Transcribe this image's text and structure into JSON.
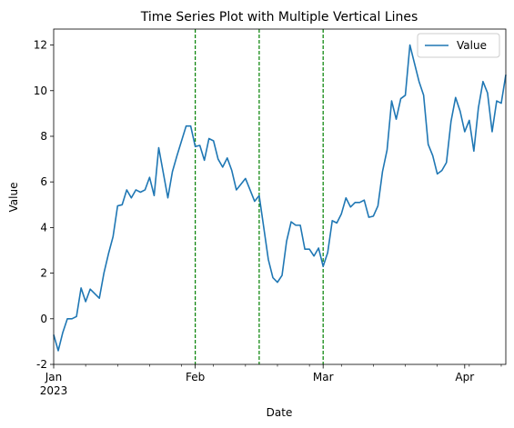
{
  "chart_data": {
    "type": "line",
    "title": "Time Series Plot with Multiple Vertical Lines",
    "xlabel": "Date",
    "ylabel": "Value",
    "x_range": [
      "2023-01-01",
      "2023-04-10"
    ],
    "ylim": [
      -2,
      12.7
    ],
    "y_ticks": [
      -2,
      0,
      2,
      4,
      6,
      8,
      10,
      12
    ],
    "x_ticks": [
      {
        "date": "2023-01-01",
        "label": "Jan",
        "sublabel": "2023"
      },
      {
        "date": "2023-02-01",
        "label": "Feb",
        "sublabel": ""
      },
      {
        "date": "2023-03-01",
        "label": "Mar",
        "sublabel": ""
      },
      {
        "date": "2023-04-01",
        "label": "Apr",
        "sublabel": ""
      }
    ],
    "minor_x_ticks": [
      "2023-01-08",
      "2023-01-15",
      "2023-01-22",
      "2023-01-29",
      "2023-02-05",
      "2023-02-12",
      "2023-02-19",
      "2023-02-26",
      "2023-03-05",
      "2023-03-12",
      "2023-03-19",
      "2023-03-26",
      "2023-04-02",
      "2023-04-09"
    ],
    "vertical_lines": [
      {
        "date": "2023-02-01",
        "color": "#008000"
      },
      {
        "date": "2023-02-15",
        "color": "#008000"
      },
      {
        "date": "2023-03-01",
        "color": "#008000"
      }
    ],
    "legend": {
      "position": "top-right"
    },
    "series": [
      {
        "name": "Value",
        "color": "#1f77b4",
        "start_date": "2023-01-01",
        "values": [
          -0.7,
          -1.4,
          -0.6,
          0.0,
          0.0,
          0.1,
          1.35,
          0.75,
          1.3,
          1.1,
          0.9,
          2.0,
          2.85,
          3.6,
          4.95,
          5.0,
          5.65,
          5.3,
          5.65,
          5.55,
          5.65,
          6.2,
          5.4,
          7.5,
          6.4,
          5.3,
          6.45,
          7.15,
          7.8,
          8.45,
          8.45,
          7.55,
          7.6,
          6.95,
          7.9,
          7.8,
          7.0,
          6.65,
          7.05,
          6.5,
          5.65,
          5.9,
          6.15,
          5.65,
          5.15,
          5.4,
          4.0,
          2.6,
          1.8,
          1.6,
          1.9,
          3.4,
          4.25,
          4.1,
          4.1,
          3.05,
          3.05,
          2.75,
          3.1,
          2.3,
          2.9,
          4.3,
          4.2,
          4.6,
          5.3,
          4.9,
          5.1,
          5.1,
          5.2,
          4.45,
          4.5,
          4.95,
          6.45,
          7.4,
          9.55,
          8.75,
          9.65,
          9.8,
          12.0,
          11.2,
          10.4,
          9.8,
          7.65,
          7.15,
          6.35,
          6.5,
          6.85,
          8.65,
          9.7,
          9.1,
          8.2,
          8.7,
          7.35,
          9.25,
          10.4,
          9.9,
          8.2,
          9.55,
          9.45,
          10.7
        ]
      }
    ]
  }
}
